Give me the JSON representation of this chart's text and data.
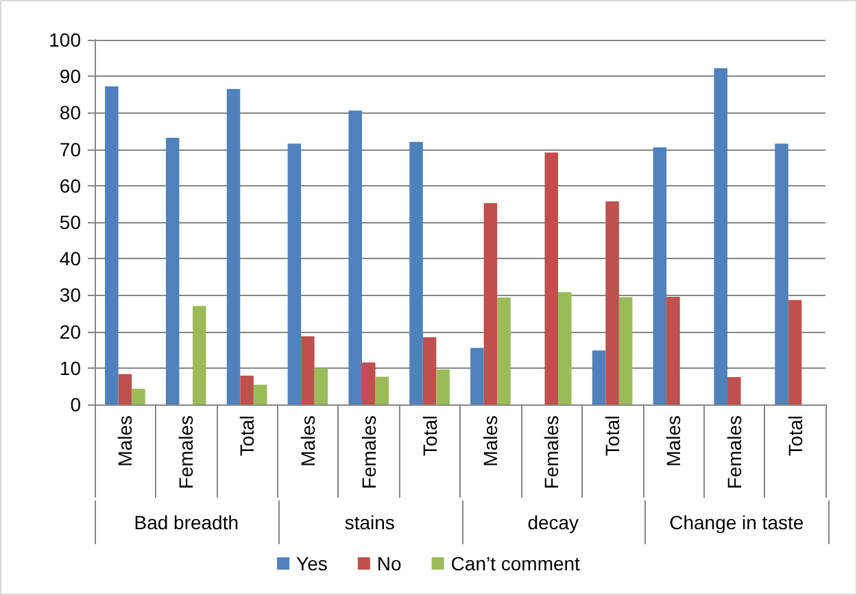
{
  "chart_data": {
    "type": "bar",
    "categories": [
      "Males",
      "Females",
      "Total",
      "Males",
      "Females",
      "Total",
      "Males",
      "Females",
      "Total",
      "Males",
      "Females",
      "Total"
    ],
    "annotations": [
      "Bad breadth",
      "stains",
      "decay",
      "Change in taste"
    ],
    "series": [
      {
        "name": "Yes",
        "color": "#4f81bd",
        "values": [
          87.2,
          73.1,
          86.5,
          71.5,
          80.6,
          72.0,
          15.5,
          null,
          14.8,
          70.5,
          92.2,
          71.5
        ]
      },
      {
        "name": "No",
        "color": "#c0504d",
        "values": [
          8.3,
          null,
          7.9,
          18.7,
          11.5,
          18.4,
          55.2,
          69.1,
          55.7,
          29.5,
          7.5,
          28.6
        ]
      },
      {
        "name": "Can’t comment",
        "color": "#9bbb59",
        "values": [
          4.3,
          27.0,
          5.4,
          9.9,
          7.6,
          9.6,
          29.3,
          30.8,
          29.4,
          null,
          null,
          null
        ]
      }
    ],
    "ylim": [
      0,
      100
    ],
    "yticks": [
      0,
      10,
      20,
      30,
      40,
      50,
      60,
      70,
      80,
      90,
      100
    ],
    "grid": "y",
    "legend": "bottom"
  }
}
